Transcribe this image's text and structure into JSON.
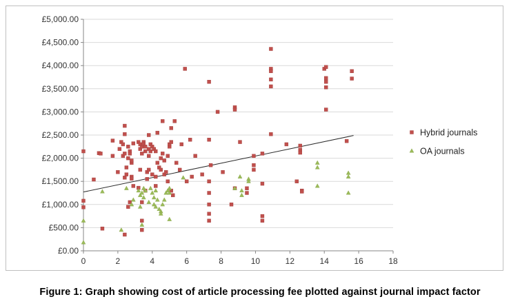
{
  "caption": "Figure 1: Graph showing cost of article processing fee plotted against journal impact factor",
  "chart_data": {
    "type": "scatter",
    "title": "",
    "xlabel": "",
    "ylabel": "",
    "xlim": [
      0,
      18
    ],
    "ylim": [
      0,
      5000
    ],
    "x_ticks": [
      "0",
      "2",
      "4",
      "6",
      "8",
      "10",
      "12",
      "14",
      "16",
      "18"
    ],
    "y_ticks": [
      "£0.00",
      "£500.00",
      "£1,000.00",
      "£1,500.00",
      "£2,000.00",
      "£2,500.00",
      "£3,000.00",
      "£3,500.00",
      "£4,000.00",
      "£4,500.00",
      "£5,000.00"
    ],
    "grid": "horizontal",
    "legend_position": "right",
    "trendline": {
      "x": [
        0,
        15.7
      ],
      "y": [
        1270,
        2490
      ]
    },
    "series": [
      {
        "name": "Hybrid journals",
        "marker": "square",
        "color": "#c0504d",
        "points": [
          [
            0,
            2150
          ],
          [
            0,
            1080
          ],
          [
            0,
            940
          ],
          [
            0.6,
            1540
          ],
          [
            0.9,
            2110
          ],
          [
            1,
            2100
          ],
          [
            1.1,
            480
          ],
          [
            1.7,
            2050
          ],
          [
            1.7,
            2380
          ],
          [
            2,
            1700
          ],
          [
            2.1,
            2200
          ],
          [
            2.2,
            2350
          ],
          [
            2.3,
            2300
          ],
          [
            2.3,
            2050
          ],
          [
            2.4,
            2700
          ],
          [
            2.4,
            2520
          ],
          [
            2.4,
            1580
          ],
          [
            2.4,
            2100
          ],
          [
            2.5,
            1650
          ],
          [
            2.5,
            1800
          ],
          [
            2.6,
            2250
          ],
          [
            2.6,
            2000
          ],
          [
            2.7,
            2150
          ],
          [
            2.7,
            2100
          ],
          [
            2.8,
            1600
          ],
          [
            2.8,
            1560
          ],
          [
            2.8,
            1900
          ],
          [
            2.8,
            1950
          ],
          [
            2.9,
            1400
          ],
          [
            2.9,
            2320
          ],
          [
            2.6,
            950
          ],
          [
            2.7,
            1050
          ],
          [
            2.4,
            350
          ],
          [
            3.2,
            1360
          ],
          [
            3.2,
            2350
          ],
          [
            3.3,
            1750
          ],
          [
            3.3,
            2300
          ],
          [
            3.3,
            2200
          ],
          [
            3.4,
            2250
          ],
          [
            3.4,
            2100
          ],
          [
            3.4,
            1050
          ],
          [
            3.4,
            450
          ],
          [
            3.4,
            650
          ],
          [
            3.5,
            2350
          ],
          [
            3.5,
            2300
          ],
          [
            3.6,
            2150
          ],
          [
            3.6,
            2250
          ],
          [
            3.6,
            1300
          ],
          [
            3.7,
            1700
          ],
          [
            3.7,
            1550
          ],
          [
            3.8,
            2200
          ],
          [
            3.8,
            2050
          ],
          [
            3.8,
            1750
          ],
          [
            3.8,
            2500
          ],
          [
            3.9,
            2300
          ],
          [
            3.9,
            2150
          ],
          [
            4,
            2250
          ],
          [
            4,
            1650
          ],
          [
            4.1,
            2200
          ],
          [
            4.2,
            2150
          ],
          [
            4.2,
            1400
          ],
          [
            4.2,
            1600
          ],
          [
            4.3,
            2550
          ],
          [
            4.3,
            1900
          ],
          [
            4.4,
            1800
          ],
          [
            4.5,
            2000
          ],
          [
            4.5,
            1750
          ],
          [
            4.6,
            2100
          ],
          [
            4.6,
            2800
          ],
          [
            4.7,
            1950
          ],
          [
            4.7,
            1650
          ],
          [
            4.8,
            1700
          ],
          [
            4.9,
            2050
          ],
          [
            4.9,
            1500
          ],
          [
            5,
            2250
          ],
          [
            5,
            2300
          ],
          [
            5.1,
            2650
          ],
          [
            5.1,
            2350
          ],
          [
            5.1,
            1300
          ],
          [
            5.2,
            1200
          ],
          [
            5.3,
            2800
          ],
          [
            5.4,
            1900
          ],
          [
            5.6,
            1750
          ],
          [
            5.7,
            2300
          ],
          [
            5.9,
            3930
          ],
          [
            6,
            1500
          ],
          [
            6.2,
            2400
          ],
          [
            6.3,
            1600
          ],
          [
            6.5,
            2050
          ],
          [
            6.9,
            1650
          ],
          [
            7.3,
            2400
          ],
          [
            7.3,
            3650
          ],
          [
            7.3,
            1500
          ],
          [
            7.3,
            1250
          ],
          [
            7.3,
            1000
          ],
          [
            7.3,
            800
          ],
          [
            7.3,
            650
          ],
          [
            7.4,
            1850
          ],
          [
            7.8,
            3000
          ],
          [
            8.1,
            1700
          ],
          [
            8.6,
            1000
          ],
          [
            8.8,
            3100
          ],
          [
            8.8,
            3050
          ],
          [
            8.8,
            1350
          ],
          [
            9.1,
            2350
          ],
          [
            9.5,
            1350
          ],
          [
            9.5,
            1250
          ],
          [
            9.9,
            2050
          ],
          [
            9.9,
            1750
          ],
          [
            9.9,
            1850
          ],
          [
            10.4,
            2100
          ],
          [
            10.4,
            1450
          ],
          [
            10.4,
            750
          ],
          [
            10.4,
            650
          ],
          [
            10.9,
            4360
          ],
          [
            10.9,
            3930
          ],
          [
            10.9,
            3880
          ],
          [
            10.9,
            3700
          ],
          [
            10.9,
            3550
          ],
          [
            10.9,
            2520
          ],
          [
            11.8,
            2300
          ],
          [
            12.4,
            1500
          ],
          [
            12.6,
            2270
          ],
          [
            12.6,
            2180
          ],
          [
            12.6,
            2120
          ],
          [
            12.7,
            1300
          ],
          [
            12.7,
            1280
          ],
          [
            14,
            3930
          ],
          [
            14.1,
            3970
          ],
          [
            14.1,
            3730
          ],
          [
            14.1,
            3650
          ],
          [
            14.1,
            3530
          ],
          [
            14.1,
            3050
          ],
          [
            15.3,
            2370
          ],
          [
            15.6,
            3880
          ],
          [
            15.6,
            3720
          ]
        ]
      },
      {
        "name": "OA journals",
        "marker": "triangle",
        "color": "#9bbb59",
        "points": [
          [
            0,
            180
          ],
          [
            0,
            650
          ],
          [
            1.1,
            1280
          ],
          [
            2.2,
            450
          ],
          [
            2.5,
            1350
          ],
          [
            2.8,
            1000
          ],
          [
            2.9,
            1100
          ],
          [
            3.2,
            1300
          ],
          [
            3.3,
            950
          ],
          [
            3.3,
            1200
          ],
          [
            3.4,
            1250
          ],
          [
            3.4,
            560
          ],
          [
            3.5,
            1350
          ],
          [
            3.5,
            1150
          ],
          [
            3.6,
            1300
          ],
          [
            3.8,
            1050
          ],
          [
            3.9,
            1350
          ],
          [
            4,
            1250
          ],
          [
            4.1,
            1150
          ],
          [
            4.1,
            1000
          ],
          [
            4.2,
            1300
          ],
          [
            4.2,
            950
          ],
          [
            4.3,
            1100
          ],
          [
            4.4,
            900
          ],
          [
            4.5,
            850
          ],
          [
            4.5,
            800
          ],
          [
            4.6,
            1000
          ],
          [
            4.7,
            1100
          ],
          [
            4.8,
            1250
          ],
          [
            4.9,
            1300
          ],
          [
            5,
            1350
          ],
          [
            5,
            1250
          ],
          [
            5,
            680
          ],
          [
            5.8,
            1580
          ],
          [
            8.8,
            1350
          ],
          [
            9.1,
            1600
          ],
          [
            9.2,
            1300
          ],
          [
            9.2,
            1200
          ],
          [
            9.6,
            1550
          ],
          [
            9.6,
            1500
          ],
          [
            13.6,
            1900
          ],
          [
            13.6,
            1800
          ],
          [
            13.6,
            1400
          ],
          [
            15.4,
            1680
          ],
          [
            15.4,
            1600
          ],
          [
            15.4,
            1250
          ]
        ]
      }
    ]
  }
}
